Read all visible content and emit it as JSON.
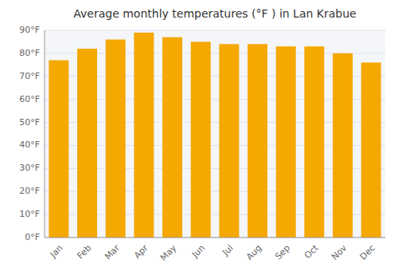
{
  "chart_data": {
    "type": "bar",
    "title": "Average monthly temperatures (°F ) in Lan Krabue",
    "categories": [
      "Jan",
      "Feb",
      "Mar",
      "Apr",
      "May",
      "Jun",
      "Jul",
      "Aug",
      "Sep",
      "Oct",
      "Nov",
      "Dec"
    ],
    "values": [
      77,
      82,
      86,
      89,
      87,
      85,
      84,
      84,
      83,
      83,
      80,
      76
    ],
    "color": "#F5A800",
    "ylim": [
      0,
      90
    ],
    "yticks": [
      {
        "value": 0,
        "label": "0°F"
      },
      {
        "value": 10,
        "label": "10°F"
      },
      {
        "value": 20,
        "label": "20°F"
      },
      {
        "value": 30,
        "label": "30°F"
      },
      {
        "value": 40,
        "label": "40°F"
      },
      {
        "value": 50,
        "label": "50°F"
      },
      {
        "value": 60,
        "label": "60°F"
      },
      {
        "value": 70,
        "label": "70°F"
      },
      {
        "value": 80,
        "label": "80°F"
      },
      {
        "value": 90,
        "label": "90°F"
      }
    ],
    "grid": true
  }
}
